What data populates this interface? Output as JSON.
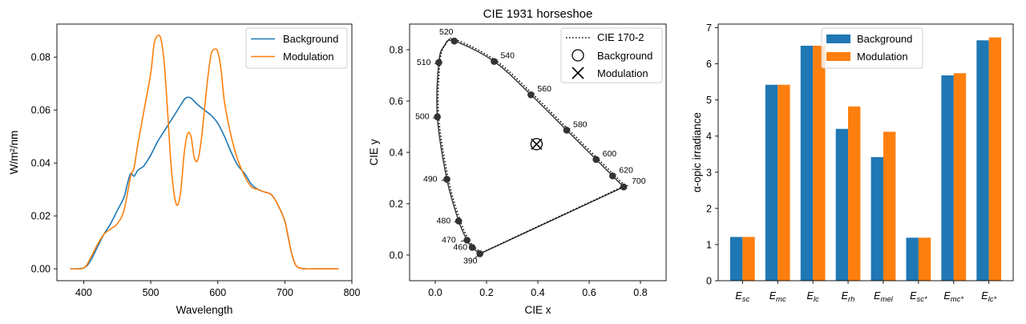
{
  "chart_data": [
    {
      "type": "line",
      "xlabel": "Wavelength",
      "ylabel": "W/m²/nm",
      "xlim": [
        360,
        800
      ],
      "ylim": [
        -0.0045,
        0.0925
      ],
      "x_ticks": [
        400,
        500,
        600,
        700,
        800
      ],
      "y_ticks": [
        0.0,
        0.02,
        0.04,
        0.06,
        0.08
      ],
      "y_tick_labels": [
        "0.00",
        "0.02",
        "0.04",
        "0.06",
        "0.08"
      ],
      "legend_position": "upper right",
      "grid": false,
      "series": [
        {
          "name": "Background",
          "color": "#1f77b4",
          "x": [
            380,
            400,
            410,
            420,
            430,
            440,
            450,
            460,
            465,
            470,
            475,
            480,
            485,
            490,
            500,
            510,
            520,
            530,
            540,
            550,
            555,
            560,
            570,
            580,
            590,
            600,
            610,
            620,
            630,
            640,
            650,
            660,
            670,
            680,
            690,
            700,
            705,
            710,
            715,
            720,
            730,
            750,
            780
          ],
          "y": [
            0.0,
            0.0003,
            0.003,
            0.008,
            0.013,
            0.017,
            0.022,
            0.027,
            0.032,
            0.036,
            0.035,
            0.037,
            0.038,
            0.039,
            0.043,
            0.048,
            0.052,
            0.056,
            0.06,
            0.064,
            0.0648,
            0.0645,
            0.062,
            0.06,
            0.058,
            0.055,
            0.05,
            0.044,
            0.039,
            0.036,
            0.032,
            0.03,
            0.029,
            0.028,
            0.024,
            0.018,
            0.012,
            0.006,
            0.002,
            0.0005,
            0.0,
            0.0,
            0.0
          ]
        },
        {
          "name": "Modulation",
          "color": "#ff7f0e",
          "x": [
            380,
            400,
            410,
            420,
            430,
            440,
            450,
            460,
            470,
            475,
            480,
            490,
            500,
            505,
            510,
            515,
            520,
            525,
            530,
            535,
            540,
            545,
            550,
            555,
            560,
            565,
            570,
            575,
            580,
            585,
            590,
            595,
            600,
            605,
            610,
            620,
            630,
            640,
            650,
            660,
            670,
            680,
            690,
            700,
            705,
            710,
            715,
            720,
            730,
            750,
            780
          ],
          "y": [
            0.0,
            0.0003,
            0.004,
            0.009,
            0.013,
            0.015,
            0.017,
            0.022,
            0.035,
            0.038,
            0.046,
            0.06,
            0.074,
            0.085,
            0.088,
            0.087,
            0.078,
            0.06,
            0.04,
            0.028,
            0.024,
            0.03,
            0.044,
            0.051,
            0.05,
            0.042,
            0.041,
            0.048,
            0.06,
            0.072,
            0.081,
            0.083,
            0.082,
            0.075,
            0.063,
            0.05,
            0.041,
            0.035,
            0.031,
            0.03,
            0.029,
            0.028,
            0.024,
            0.018,
            0.012,
            0.006,
            0.002,
            0.0005,
            0.0,
            0.0,
            0.0
          ]
        }
      ]
    },
    {
      "type": "scatter",
      "title": "CIE 1931 horseshoe",
      "xlabel": "CIE x",
      "ylabel": "CIE y",
      "xlim": [
        -0.1,
        0.9
      ],
      "ylim": [
        -0.1,
        0.9
      ],
      "x_ticks": [
        0.0,
        0.2,
        0.4,
        0.6,
        0.8
      ],
      "y_ticks": [
        0.0,
        0.2,
        0.4,
        0.6,
        0.8
      ],
      "tick_labels": [
        "0.0",
        "0.2",
        "0.4",
        "0.6",
        "0.8"
      ],
      "legend_position": "upper right",
      "legend": [
        {
          "label": "CIE 170-2",
          "marker": "dotted-line"
        },
        {
          "label": "Background",
          "marker": "open-circle"
        },
        {
          "label": "Modulation",
          "marker": "x"
        }
      ],
      "locus_points": [
        {
          "label": "390",
          "x": 0.1741,
          "y": 0.005
        },
        {
          "label": "460",
          "x": 0.144,
          "y": 0.0297
        },
        {
          "label": "470",
          "x": 0.1241,
          "y": 0.0578
        },
        {
          "label": "480",
          "x": 0.0913,
          "y": 0.1327
        },
        {
          "label": "490",
          "x": 0.0454,
          "y": 0.295
        },
        {
          "label": "500",
          "x": 0.0082,
          "y": 0.5384
        },
        {
          "label": "510",
          "x": 0.0139,
          "y": 0.7502
        },
        {
          "label": "520",
          "x": 0.0743,
          "y": 0.8338
        },
        {
          "label": "540",
          "x": 0.2296,
          "y": 0.7543
        },
        {
          "label": "560",
          "x": 0.3731,
          "y": 0.6245
        },
        {
          "label": "580",
          "x": 0.5125,
          "y": 0.4866
        },
        {
          "label": "600",
          "x": 0.627,
          "y": 0.3725
        },
        {
          "label": "620",
          "x": 0.6915,
          "y": 0.3083
        },
        {
          "label": "700",
          "x": 0.7347,
          "y": 0.2653
        }
      ],
      "background_point": {
        "x": 0.395,
        "y": 0.432
      },
      "modulation_point": {
        "x": 0.395,
        "y": 0.432
      }
    },
    {
      "type": "bar",
      "xlabel": "",
      "ylabel": "α-opic irradiance",
      "ylim": [
        0,
        7.1
      ],
      "y_ticks": [
        0,
        1,
        2,
        3,
        4,
        5,
        6,
        7
      ],
      "legend_position": "upper center",
      "grid": false,
      "categories": [
        {
          "base": "E",
          "sub": "sc"
        },
        {
          "base": "E",
          "sub": "mc"
        },
        {
          "base": "E",
          "sub": "lc"
        },
        {
          "base": "E",
          "sub": "rh"
        },
        {
          "base": "E",
          "sub": "mel"
        },
        {
          "base": "E",
          "sub": "sc*"
        },
        {
          "base": "E",
          "sub": "mc*"
        },
        {
          "base": "E",
          "sub": "lc*"
        }
      ],
      "series": [
        {
          "name": "Background",
          "color": "#1f77b4",
          "values": [
            1.21,
            5.42,
            6.5,
            4.2,
            3.42,
            1.19,
            5.68,
            6.65
          ]
        },
        {
          "name": "Modulation",
          "color": "#ff7f0e",
          "values": [
            1.21,
            5.42,
            6.5,
            4.82,
            4.12,
            1.19,
            5.74,
            6.73
          ]
        }
      ]
    }
  ]
}
